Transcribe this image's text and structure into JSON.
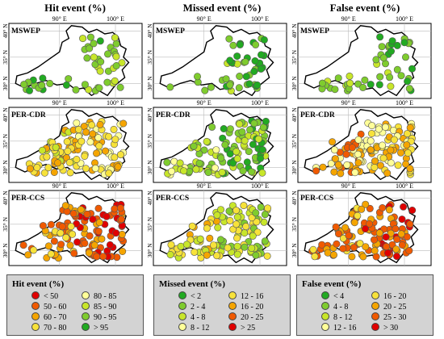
{
  "columns": [
    {
      "title": "Hit event (%)"
    },
    {
      "title": "Missed event (%)"
    },
    {
      "title": "False event (%)"
    }
  ],
  "row_labels": [
    "MSWEP",
    "PER-CDR",
    "PER-CCS"
  ],
  "axis": {
    "lon_ticks": [
      "90° E",
      "100° E"
    ],
    "lat_ticks": [
      "40° N",
      "35° N",
      "30° N"
    ]
  },
  "legends": [
    {
      "title": "Hit event (%)",
      "items": [
        {
          "label": "< 50",
          "color": "#e00000"
        },
        {
          "label": "50 - 60",
          "color": "#f05a00"
        },
        {
          "label": "60 - 70",
          "color": "#f5a500"
        },
        {
          "label": "70 - 80",
          "color": "#f7e23a"
        },
        {
          "label": "80 - 85",
          "color": "#ffff99"
        },
        {
          "label": "85 - 90",
          "color": "#c8e62a"
        },
        {
          "label": "90 - 95",
          "color": "#7fcc2e"
        },
        {
          "label": "> 95",
          "color": "#22aa22"
        }
      ]
    },
    {
      "title": "Missed event (%)",
      "items": [
        {
          "label": "< 2",
          "color": "#22aa22"
        },
        {
          "label": "2 - 4",
          "color": "#7fcc2e"
        },
        {
          "label": "4 - 8",
          "color": "#c8e62a"
        },
        {
          "label": "8 - 12",
          "color": "#ffff99"
        },
        {
          "label": "12 - 16",
          "color": "#f7e23a"
        },
        {
          "label": "16 - 20",
          "color": "#f5a500"
        },
        {
          "label": "20 - 25",
          "color": "#f05a00"
        },
        {
          "label": "> 25",
          "color": "#e00000"
        }
      ]
    },
    {
      "title": "False event (%)",
      "items": [
        {
          "label": "< 4",
          "color": "#22aa22"
        },
        {
          "label": "4 - 8",
          "color": "#7fcc2e"
        },
        {
          "label": "8 - 12",
          "color": "#c8e62a"
        },
        {
          "label": "12 - 16",
          "color": "#ffff99"
        },
        {
          "label": "16 - 20",
          "color": "#f7e23a"
        },
        {
          "label": "20 - 25",
          "color": "#f5a500"
        },
        {
          "label": "25 - 30",
          "color": "#f05a00"
        },
        {
          "label": "> 30",
          "color": "#e00000"
        }
      ]
    }
  ],
  "map_panels": [
    {
      "row": 0,
      "col": 0,
      "dominant": [
        "#c8e62a",
        "#7fcc2e",
        "#22aa22"
      ]
    },
    {
      "row": 0,
      "col": 1,
      "dominant": [
        "#22aa22",
        "#7fcc2e",
        "#c8e62a"
      ]
    },
    {
      "row": 0,
      "col": 2,
      "dominant": [
        "#22aa22",
        "#7fcc2e",
        "#c8e62a"
      ]
    },
    {
      "row": 1,
      "col": 0,
      "dominant": [
        "#ffff99",
        "#f7e23a",
        "#f5a500",
        "#c8e62a"
      ]
    },
    {
      "row": 1,
      "col": 1,
      "dominant": [
        "#22aa22",
        "#7fcc2e",
        "#c8e62a",
        "#ffff99"
      ]
    },
    {
      "row": 1,
      "col": 2,
      "dominant": [
        "#f7e23a",
        "#f5a500",
        "#ffff99",
        "#f05a00"
      ]
    },
    {
      "row": 2,
      "col": 0,
      "dominant": [
        "#e00000",
        "#f05a00",
        "#f5a500",
        "#f7e23a"
      ]
    },
    {
      "row": 2,
      "col": 1,
      "dominant": [
        "#7fcc2e",
        "#c8e62a",
        "#f7e23a",
        "#f5a500"
      ]
    },
    {
      "row": 2,
      "col": 2,
      "dominant": [
        "#e00000",
        "#f05a00",
        "#f5a500",
        "#f7e23a"
      ]
    }
  ]
}
